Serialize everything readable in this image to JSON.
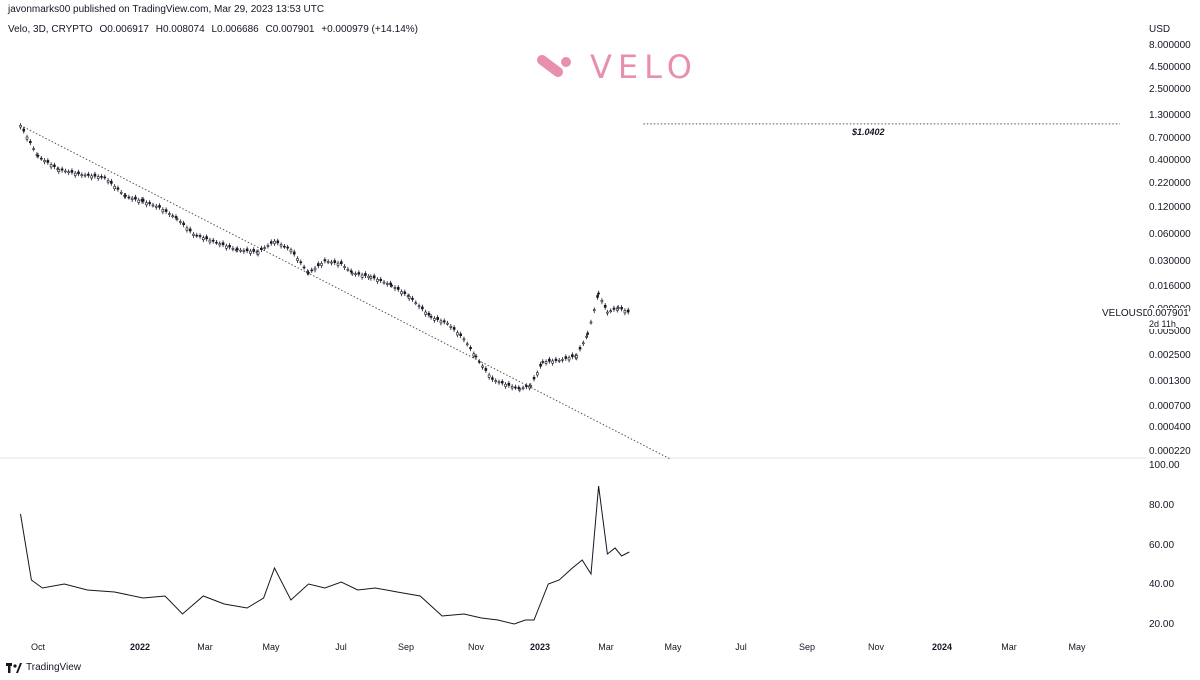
{
  "header": {
    "published": "javonmarks00 published on TradingView.com, Mar 29, 2023 13:53 UTC"
  },
  "legend": {
    "symbol": "Velo, 3D, CRYPTO",
    "open": "O0.006917",
    "high": "H0.008074",
    "low": "L0.006686",
    "close": "C0.007901",
    "change": "+0.000979 (+14.14%)"
  },
  "logo": {
    "word": "VELO",
    "color": "#e98fae"
  },
  "annotation": {
    "target_label": "$1.0402"
  },
  "price_axis": {
    "currency": "USD",
    "scale": "log",
    "ticks": [
      "8.000000",
      "4.500000",
      "2.500000",
      "1.300000",
      "0.700000",
      "0.400000",
      "0.220000",
      "0.120000",
      "0.060000",
      "0.030000",
      "0.016000",
      "0.009000",
      "0.005000",
      "0.002500",
      "0.001300",
      "0.000700",
      "0.000400",
      "0.000220"
    ],
    "symbol_label": "VELOUSD",
    "last_price": "0.007901",
    "countdown": "2d 11h"
  },
  "osc_axis": {
    "ticks": [
      "100.00",
      "80.00",
      "60.00",
      "40.00",
      "20.00"
    ]
  },
  "time_axis": {
    "labels": [
      {
        "text": "Oct",
        "bold": false
      },
      {
        "text": "2022",
        "bold": true
      },
      {
        "text": "Mar",
        "bold": false
      },
      {
        "text": "May",
        "bold": false
      },
      {
        "text": "Jul",
        "bold": false
      },
      {
        "text": "Sep",
        "bold": false
      },
      {
        "text": "Nov",
        "bold": false
      },
      {
        "text": "2023",
        "bold": true
      },
      {
        "text": "Mar",
        "bold": false
      },
      {
        "text": "May",
        "bold": false
      },
      {
        "text": "Jul",
        "bold": false
      },
      {
        "text": "Sep",
        "bold": false
      },
      {
        "text": "Nov",
        "bold": false
      },
      {
        "text": "2024",
        "bold": true
      },
      {
        "text": "Mar",
        "bold": false
      },
      {
        "text": "May",
        "bold": false
      }
    ]
  },
  "footer": {
    "brand": "TradingView"
  },
  "chart_data": {
    "type": "line",
    "title": "",
    "price_series": {
      "name": "VELOUSD",
      "y_scale": "log",
      "x": [
        "2021-09-15",
        "2021-10-01",
        "2021-10-20",
        "2021-11-10",
        "2021-12-01",
        "2021-12-20",
        "2022-01-05",
        "2022-01-20",
        "2022-02-05",
        "2022-02-20",
        "2022-03-10",
        "2022-04-01",
        "2022-04-20",
        "2022-05-05",
        "2022-05-20",
        "2022-06-05",
        "2022-06-20",
        "2022-07-05",
        "2022-07-15",
        "2022-08-01",
        "2022-08-20",
        "2022-09-05",
        "2022-09-25",
        "2022-10-10",
        "2022-10-25",
        "2022-11-05",
        "2022-11-20",
        "2022-12-05",
        "2022-12-15",
        "2022-12-25",
        "2023-01-05",
        "2023-01-20",
        "2023-02-05",
        "2023-02-15",
        "2023-02-25",
        "2023-03-05",
        "2023-03-15",
        "2023-03-25"
      ],
      "close": [
        1.0,
        0.45,
        0.32,
        0.28,
        0.26,
        0.16,
        0.14,
        0.12,
        0.09,
        0.06,
        0.05,
        0.04,
        0.038,
        0.05,
        0.04,
        0.022,
        0.03,
        0.028,
        0.022,
        0.02,
        0.016,
        0.012,
        0.007,
        0.006,
        0.004,
        0.0025,
        0.0014,
        0.0012,
        0.0011,
        0.0012,
        0.0022,
        0.0023,
        0.0026,
        0.0045,
        0.013,
        0.008,
        0.009,
        0.0079
      ],
      "ylim": [
        0.00018,
        9.0
      ]
    },
    "trendline": {
      "from": {
        "x": "2021-09-15",
        "y": 1.0
      },
      "to": {
        "x": "2023-05-01",
        "y": 0.00018
      },
      "style": "dotted"
    },
    "target_line": {
      "y": 1.0402,
      "x_start": "2023-03-25",
      "x_end": "2024-05-25",
      "style": "dotted"
    },
    "oscillator": {
      "name": "",
      "x": [
        "2021-09-15",
        "2021-09-25",
        "2021-10-05",
        "2021-10-25",
        "2021-11-15",
        "2021-12-10",
        "2022-01-05",
        "2022-01-25",
        "2022-02-10",
        "2022-03-01",
        "2022-03-20",
        "2022-04-10",
        "2022-04-25",
        "2022-05-05",
        "2022-05-20",
        "2022-06-05",
        "2022-06-20",
        "2022-07-05",
        "2022-07-20",
        "2022-08-05",
        "2022-08-25",
        "2022-09-15",
        "2022-10-05",
        "2022-10-25",
        "2022-11-10",
        "2022-11-25",
        "2022-12-10",
        "2022-12-20",
        "2022-12-28",
        "2023-01-10",
        "2023-01-20",
        "2023-02-01",
        "2023-02-10",
        "2023-02-18",
        "2023-02-25",
        "2023-03-05",
        "2023-03-12",
        "2023-03-18",
        "2023-03-25"
      ],
      "values": [
        75,
        42,
        38,
        40,
        37,
        36,
        33,
        34,
        25,
        34,
        30,
        28,
        33,
        48,
        32,
        40,
        38,
        41,
        37,
        38,
        36,
        34,
        24,
        25,
        23,
        22,
        20,
        22,
        22,
        40,
        42,
        48,
        52,
        45,
        89,
        55,
        58,
        54,
        56
      ],
      "ylim": [
        15,
        100
      ]
    }
  }
}
